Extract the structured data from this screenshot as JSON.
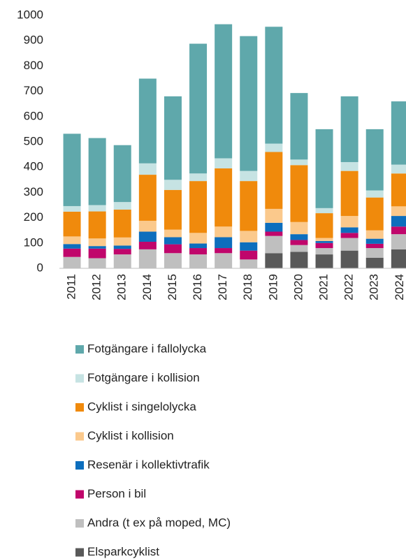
{
  "chart_data": {
    "type": "stacked-bar",
    "categories": [
      "2011",
      "2012",
      "2013",
      "2014",
      "2015",
      "2016",
      "2017",
      "2018",
      "2019",
      "2020",
      "2021",
      "2022",
      "2023",
      "2024"
    ],
    "series": [
      {
        "name": "Fotgängare i fallolycka",
        "color": "#5fa8ab",
        "values": [
          286,
          265,
          225,
          335,
          330,
          513,
          530,
          533,
          462,
          263,
          312,
          260,
          242,
          250
        ]
      },
      {
        "name": "Fotgängare i kollision",
        "color": "#c6e3e3",
        "values": [
          22,
          25,
          30,
          45,
          40,
          30,
          40,
          40,
          33,
          22,
          20,
          35,
          28,
          35
        ]
      },
      {
        "name": "Cyklist i singelolycka",
        "color": "#f08a0c",
        "values": [
          98,
          107,
          110,
          182,
          157,
          205,
          230,
          197,
          225,
          225,
          98,
          178,
          130,
          130
        ]
      },
      {
        "name": "Cyklist i kollision",
        "color": "#fbc98c",
        "values": [
          30,
          30,
          32,
          43,
          30,
          42,
          42,
          45,
          55,
          48,
          12,
          45,
          33,
          38
        ]
      },
      {
        "name": "Resenär i kollektivtrafik",
        "color": "#0d6ebd",
        "values": [
          18,
          10,
          13,
          40,
          28,
          18,
          43,
          33,
          35,
          23,
          8,
          22,
          20,
          42
        ]
      },
      {
        "name": "Person i bil",
        "color": "#c0066b",
        "values": [
          33,
          38,
          22,
          30,
          35,
          25,
          20,
          35,
          17,
          20,
          20,
          20,
          17,
          30
        ]
      },
      {
        "name": "Andra (t ex på moped, MC)",
        "color": "#bfbfbf",
        "values": [
          45,
          40,
          55,
          75,
          60,
          55,
          60,
          35,
          68,
          27,
          25,
          50,
          38,
          60
        ]
      },
      {
        "name": "Elsparkcyklist",
        "color": "#595959",
        "values": [
          null,
          null,
          null,
          null,
          null,
          null,
          null,
          null,
          60,
          65,
          55,
          70,
          42,
          75
        ]
      }
    ],
    "ylim": [
      0,
      1000
    ],
    "yticks": [
      0,
      100,
      200,
      300,
      400,
      500,
      600,
      700,
      800,
      900,
      1000
    ]
  }
}
